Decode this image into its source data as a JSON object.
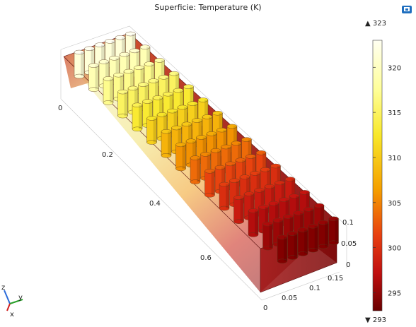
{
  "title": "Superficie: Temperature (K)",
  "colorbar": {
    "max_label": "▲ 323",
    "min_label": "▼ 293",
    "max": 323,
    "min": 293,
    "ticks": [
      "320",
      "315",
      "310",
      "305",
      "300",
      "295"
    ],
    "tick_values": [
      320,
      315,
      310,
      305,
      300,
      295
    ]
  },
  "axes": {
    "long_ticks": [
      "0",
      "0.2",
      "0.4",
      "0.6"
    ],
    "y_ticks": [
      "0",
      "0.05",
      "0.1",
      "0.15"
    ],
    "z_ticks": [
      "0.1",
      "0.05",
      "0"
    ]
  },
  "triad": {
    "z": "z",
    "y": "y",
    "x": "x"
  },
  "colors": {
    "hot": "#fffff0",
    "cold": "#6a0000"
  },
  "toolbar": {
    "icon": "camera-icon"
  }
}
